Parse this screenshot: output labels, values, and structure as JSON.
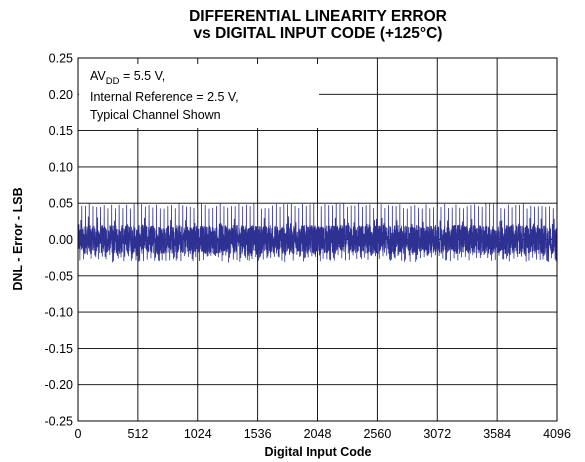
{
  "chart_data": {
    "type": "line",
    "title_line1": "DIFFERENTIAL LINEARITY ERROR",
    "title_line2": "vs DIGITAL INPUT CODE (+125°C)",
    "xlabel": "Digital Input Code",
    "ylabel": "DNL - Error - LSB",
    "xlim": [
      0,
      4096
    ],
    "ylim": [
      -0.25,
      0.25
    ],
    "xticks": [
      "0",
      "512",
      "1024",
      "1536",
      "2048",
      "2560",
      "3072",
      "3584",
      "4096"
    ],
    "yticks": [
      "0.25",
      "0.20",
      "0.15",
      "0.10",
      "0.05",
      "0.00",
      "-0.05",
      "-0.10",
      "-0.15",
      "-0.20",
      "-0.25"
    ],
    "grid": true,
    "series_color": "#2e3192",
    "series": [
      {
        "x_start": 0,
        "x_end": 4095,
        "typical_band": [
          -0.02,
          0.02
        ],
        "max_spike": 0.05,
        "min_spike": -0.03
      }
    ],
    "annotation": {
      "line1_prefix": "AV",
      "line1_sub": "DD",
      "line1_suffix": " = 5.5 V,",
      "line2": "Internal Reference = 2.5 V,",
      "line3": "Typical Channel Shown"
    }
  }
}
